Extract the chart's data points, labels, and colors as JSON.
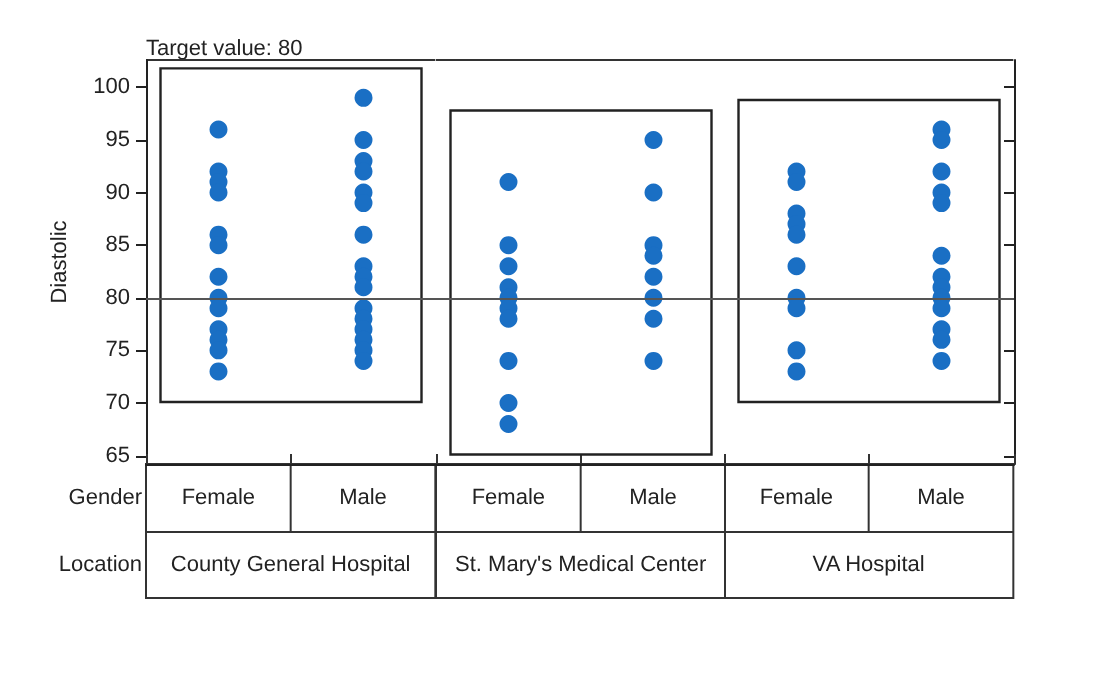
{
  "chart_data": [
    {
      "type": "scatter",
      "ylabel": "Diastolic",
      "xlabel": "County General Hospital",
      "categories": [
        "Female",
        "Male"
      ],
      "series": [
        {
          "color": "#1a6fc4",
          "x": [
            "Female",
            "Female",
            "Female",
            "Female",
            "Female",
            "Female",
            "Female",
            "Female",
            "Female",
            "Female",
            "Female",
            "Female",
            "Female",
            "Male",
            "Male",
            "Male",
            "Male",
            "Male",
            "Male",
            "Male",
            "Male",
            "Male",
            "Male",
            "Male",
            "Male",
            "Male",
            "Male",
            "Male",
            "Male"
          ],
          "values": [
            96,
            92,
            91,
            90,
            86,
            85,
            82,
            80,
            79,
            77,
            76,
            75,
            73,
            99,
            95,
            93,
            92,
            90,
            89,
            86,
            83,
            82,
            81,
            79,
            78,
            77,
            76,
            75,
            74
          ]
        }
      ],
      "annotations": [
        "Target value: 80",
        "Gender",
        "Location"
      ],
      "ref_lines": [
        {
          "axis": "y",
          "value": 80,
          "color": "#555555"
        }
      ],
      "ylim": [
        64.2,
        102.6
      ],
      "yticks": [
        65,
        70,
        75,
        80,
        85,
        90,
        95,
        100
      ],
      "marker": "circle",
      "grid": false
    },
    {
      "type": "scatter",
      "xlabel": "St. Mary's Medical Center",
      "categories": [
        "Female",
        "Male"
      ],
      "series": [
        {
          "color": "#1a6fc4",
          "x": [
            "Female",
            "Female",
            "Female",
            "Female",
            "Female",
            "Female",
            "Female",
            "Female",
            "Female",
            "Female",
            "Male",
            "Male",
            "Male",
            "Male",
            "Male",
            "Male",
            "Male",
            "Male"
          ],
          "values": [
            91,
            85,
            83,
            81,
            80,
            79,
            78,
            74,
            70,
            68,
            95,
            90,
            85,
            84,
            82,
            80,
            78,
            74
          ]
        }
      ],
      "ref_lines": [
        {
          "axis": "y",
          "value": 80,
          "color": "#555555"
        }
      ],
      "ylim": [
        64.2,
        102.6
      ],
      "yticks": [
        65,
        70,
        75,
        80,
        85,
        90,
        95,
        100
      ],
      "marker": "circle",
      "grid": false,
      "tick_labels": "x"
    },
    {
      "type": "scatter",
      "xlabel": "VA Hospital",
      "categories": [
        "Female",
        "Male"
      ],
      "series": [
        {
          "color": "#1a6fc4",
          "x": [
            "Female",
            "Female",
            "Female",
            "Female",
            "Female",
            "Female",
            "Female",
            "Female",
            "Female",
            "Female",
            "Male",
            "Male",
            "Male",
            "Male",
            "Male",
            "Male",
            "Male",
            "Male",
            "Male",
            "Male",
            "Male",
            "Male",
            "Male"
          ],
          "values": [
            92,
            91,
            88,
            87,
            86,
            83,
            80,
            79,
            75,
            73,
            96,
            95,
            92,
            90,
            89,
            84,
            82,
            81,
            80,
            79,
            77,
            76,
            74
          ]
        }
      ],
      "ref_lines": [
        {
          "axis": "y",
          "value": 80,
          "color": "#555555"
        }
      ],
      "ylim": [
        64.2,
        102.6
      ],
      "yticks": [
        65,
        70,
        75,
        80,
        85,
        90,
        95,
        100
      ],
      "marker": "circle",
      "grid": false,
      "tick_labels": "x"
    }
  ]
}
